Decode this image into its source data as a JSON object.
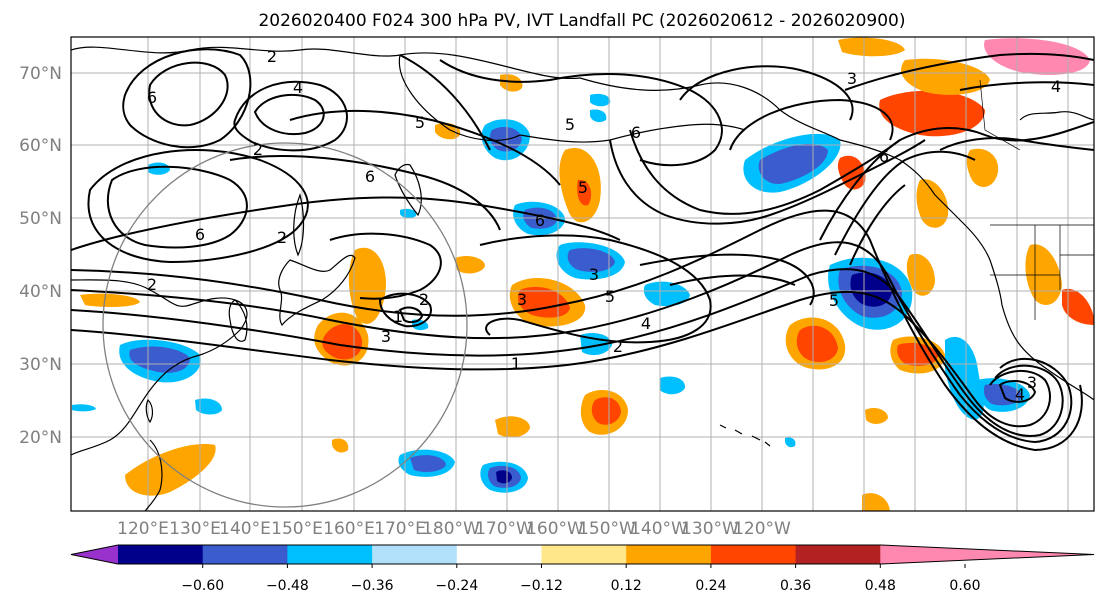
{
  "title": "2026020400 F024 300 hPa PV, IVT Landfall PC (2026020612 - 2026020900)",
  "lat_labels": [
    "70°N",
    "60°N",
    "50°N",
    "40°N",
    "30°N",
    "20°N"
  ],
  "lon_labels": [
    "120°E",
    "130°E",
    "140°E",
    "150°E",
    "160°E",
    "170°E",
    "180°W",
    "170°W",
    "160°W",
    "150°W",
    "140°W",
    "130°W",
    "120°W"
  ],
  "colorbar": {
    "colors": [
      "#9932cc",
      "#00008b",
      "#3a5ccc",
      "#00bfff",
      "#b0e0fa",
      "#ffffff",
      "#ffe78a",
      "#ffa500",
      "#ff4500",
      "#b22222",
      "#ff88b0"
    ],
    "tick_labels": [
      "−0.60",
      "−0.48",
      "−0.36",
      "−0.24",
      "−0.12",
      "0.12",
      "0.24",
      "0.36",
      "0.48",
      "0.60"
    ]
  },
  "contour_labels": [
    "6",
    "2",
    "4",
    "2",
    "6",
    "2",
    "6",
    "2",
    "5",
    "1",
    "3",
    "2",
    "3",
    "5",
    "4",
    "2",
    "1",
    "6",
    "3",
    "5",
    "6",
    "5",
    "6",
    "3",
    "4",
    "5",
    "3",
    "4"
  ]
}
